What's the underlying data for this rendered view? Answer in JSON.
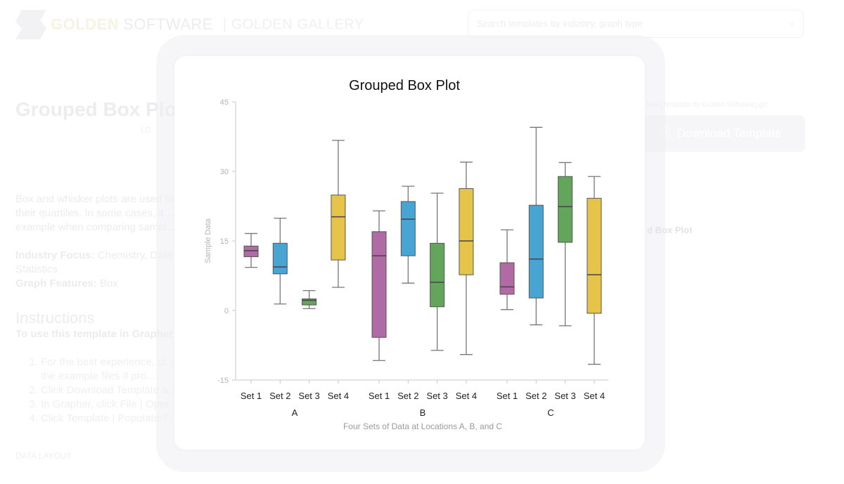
{
  "header": {
    "logo_golden": "GOLDEN",
    "logo_software": "SOFTWARE",
    "gallery": "| GOLDEN GALLERY",
    "search_placeholder": "Search templates by industry, graph type",
    "search_icon": "search-icon"
  },
  "page": {
    "title": "Grouped Box Plot",
    "subtitle": "LD",
    "description": "Box and whisker plots are used to ... their quartiles. In some cases, it ... example when comparing sampl...",
    "industry_label": "Industry Focus:",
    "industry_value": "Chemistry, Data ... Statistics",
    "features_label": "Graph Features:",
    "features_value": "Box",
    "instructions_heading": "Instructions",
    "instructions_sub": "To use this template in Grapher",
    "steps": [
      "For the best experience, st... use the example files if pro...",
      "Click Download Template a...",
      "In Grapher, click File | Oper...",
      "Click Template | Populate T..."
    ],
    "data_layout": "DATA LAYOUT",
    "file_name": "d Box Plot (Template by Golden Software).grt",
    "download_label": "Download Template",
    "thumb_title": "d Box Plot"
  },
  "colors": {
    "set1": "#b06aa4",
    "set2": "#48a4d2",
    "set3": "#64a55c",
    "set4": "#e6c44a",
    "edge": "#555555"
  },
  "chart_data": {
    "type": "box",
    "title": "Grouped Box Plot",
    "ylabel": "Sample Data",
    "xlabel": "Four Sets of Data at Locations A, B, and C",
    "ylim": [
      -15,
      45
    ],
    "yticks": [
      -15,
      0,
      15,
      30,
      45
    ],
    "groups": [
      "A",
      "B",
      "C"
    ],
    "sets": [
      "Set 1",
      "Set 2",
      "Set 3",
      "Set 4"
    ],
    "grid": false,
    "boxes": [
      [
        {
          "min": 9.3,
          "q1": 11.6,
          "median": 12.9,
          "q3": 13.9,
          "max": 16.6
        },
        {
          "min": 1.4,
          "q1": 7.9,
          "median": 9.4,
          "q3": 14.5,
          "max": 19.9
        },
        {
          "min": 0.4,
          "q1": 1.2,
          "median": 2.2,
          "q3": 2.5,
          "max": 4.3
        },
        {
          "min": 5.0,
          "q1": 10.9,
          "median": 20.2,
          "q3": 24.9,
          "max": 36.7
        }
      ],
      [
        {
          "min": -10.8,
          "q1": -5.8,
          "median": 11.8,
          "q3": 17.0,
          "max": 21.5
        },
        {
          "min": 5.9,
          "q1": 11.8,
          "median": 19.7,
          "q3": 23.5,
          "max": 26.8
        },
        {
          "min": -8.6,
          "q1": 0.8,
          "median": 6.1,
          "q3": 14.5,
          "max": 25.3
        },
        {
          "min": -9.5,
          "q1": 7.7,
          "median": 15.0,
          "q3": 26.3,
          "max": 32.0
        }
      ],
      [
        {
          "min": 0.2,
          "q1": 3.5,
          "median": 5.1,
          "q3": 10.3,
          "max": 17.4
        },
        {
          "min": -3.1,
          "q1": 2.7,
          "median": 11.1,
          "q3": 22.7,
          "max": 39.5
        },
        {
          "min": -3.3,
          "q1": 14.7,
          "median": 22.4,
          "q3": 28.9,
          "max": 31.9
        },
        {
          "min": -11.6,
          "q1": -0.6,
          "median": 7.7,
          "q3": 24.2,
          "max": 28.9
        }
      ]
    ]
  }
}
